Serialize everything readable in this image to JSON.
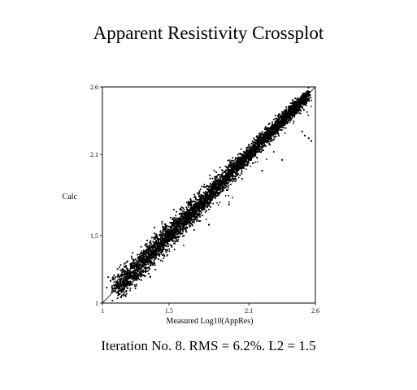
{
  "chart_data": {
    "type": "scatter",
    "title": "Apparent Resistivity Crossplot",
    "xlabel": "Measured Log10(AppRes)",
    "ylabel": "Calc",
    "xlim": [
      1,
      2.6
    ],
    "ylim": [
      1,
      2.6
    ],
    "x_ticks": [
      "1",
      "1.5",
      "2.1",
      "2.6"
    ],
    "y_ticks": [
      "1",
      "1.5",
      "2.1",
      "2.6"
    ],
    "reference_line": "y = x",
    "grid": false,
    "legend": "none",
    "point_color": "#000000",
    "description_of_series": "dense cloud of several thousand points hugging the 1:1 line from about 1.1 to 2.55, with a few outliers",
    "outlier_points": [
      {
        "x": 2.52,
        "y": 2.24
      },
      {
        "x": 2.55,
        "y": 2.22
      },
      {
        "x": 2.5,
        "y": 2.27
      },
      {
        "x": 2.57,
        "y": 2.2
      },
      {
        "x": 2.05,
        "y": 1.92
      },
      {
        "x": 2.2,
        "y": 1.98
      },
      {
        "x": 1.95,
        "y": 1.73
      },
      {
        "x": 2.35,
        "y": 2.06
      },
      {
        "x": 1.8,
        "y": 1.58
      }
    ]
  },
  "footer": {
    "text": "Iteration No. 8.  RMS = 6.2%.  L2 = 1.5"
  }
}
